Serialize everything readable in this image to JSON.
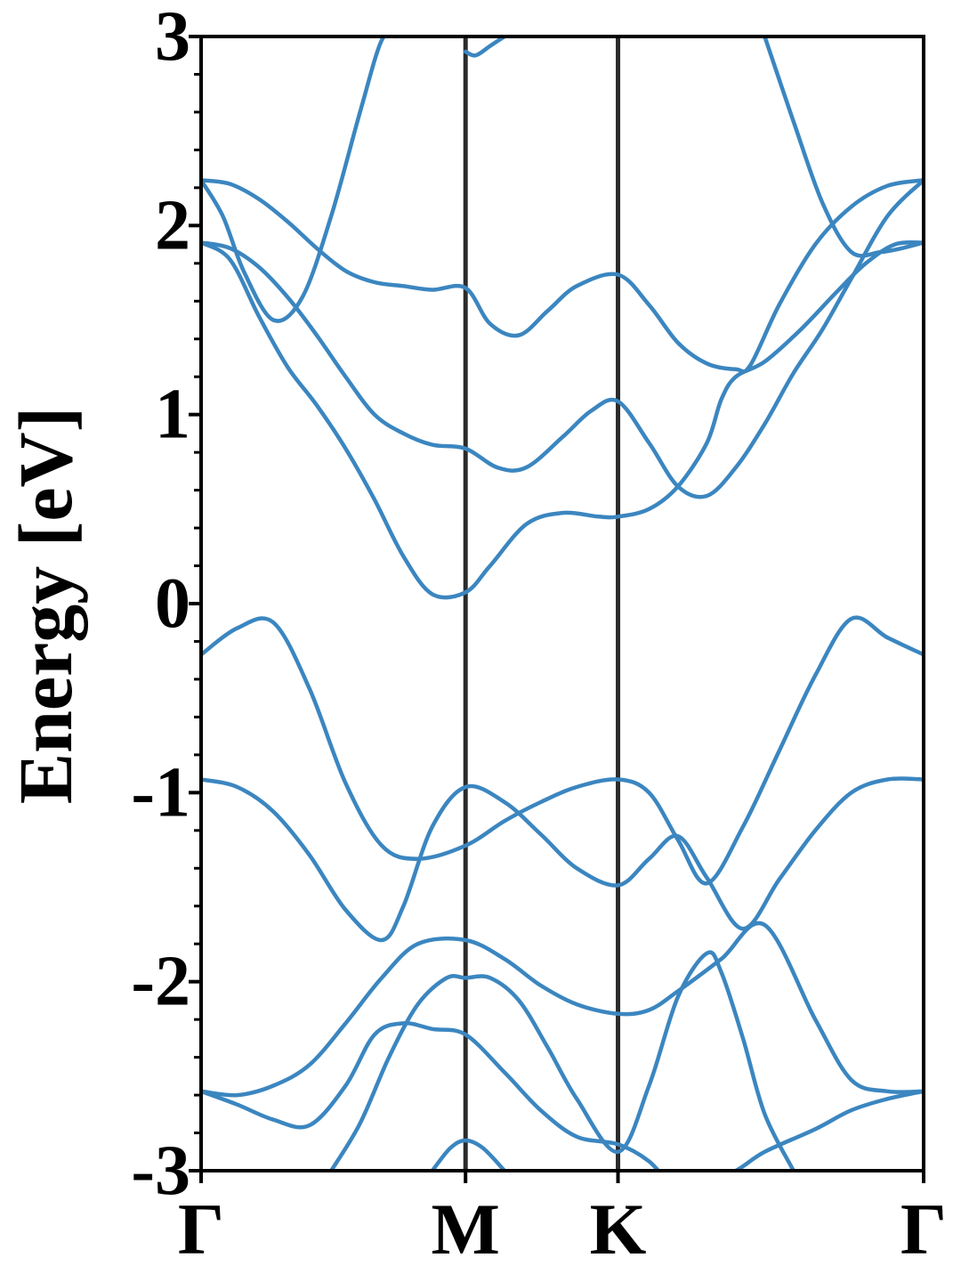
{
  "chart_data": {
    "type": "line",
    "title": "",
    "xlabel": "",
    "ylabel": "Energy [eV]",
    "ylim": [
      -3,
      3
    ],
    "xlim": [
      0,
      1
    ],
    "yticks": [
      {
        "value": 3,
        "label": "3"
      },
      {
        "value": 2,
        "label": "2"
      },
      {
        "value": 1,
        "label": "1"
      },
      {
        "value": 0,
        "label": "0"
      },
      {
        "value": -1,
        "label": "-1"
      },
      {
        "value": -2,
        "label": "-2"
      },
      {
        "value": -3,
        "label": "-3"
      }
    ],
    "yminor_step": 0.2,
    "high_symmetry_points": [
      {
        "label": "Γ",
        "x": 0.0
      },
      {
        "label": "M",
        "x": 0.366
      },
      {
        "label": "K",
        "x": 0.577
      },
      {
        "label": "Γ",
        "x": 1.0
      }
    ],
    "line_color": "#3b86c0",
    "vline_color": "#2b2b2b",
    "series": [
      {
        "x": [
          0.0,
          0.05,
          0.1,
          0.15,
          0.2,
          0.25,
          0.3,
          0.366,
          0.42,
          0.47,
          0.52,
          0.577,
          0.62,
          0.66,
          0.7,
          0.75,
          0.8,
          0.85,
          0.9,
          0.95,
          1.0
        ],
        "y": [
          -0.27,
          -0.13,
          -0.1,
          -0.45,
          -0.95,
          -1.28,
          -1.35,
          -1.28,
          -1.15,
          -1.05,
          -0.97,
          -0.93,
          -1.0,
          -1.25,
          -1.48,
          -1.18,
          -0.78,
          -0.38,
          -0.08,
          -0.18,
          -0.27
        ]
      },
      {
        "x": [
          0.0,
          0.05,
          0.1,
          0.15,
          0.2,
          0.25,
          0.28,
          0.32,
          0.366,
          0.42,
          0.47,
          0.52,
          0.577,
          0.62,
          0.66,
          0.7,
          0.75,
          0.8,
          0.85,
          0.9,
          0.95,
          1.0
        ],
        "y": [
          -0.93,
          -0.97,
          -1.1,
          -1.33,
          -1.62,
          -1.78,
          -1.6,
          -1.18,
          -0.97,
          -1.05,
          -1.22,
          -1.4,
          -1.49,
          -1.35,
          -1.23,
          -1.45,
          -1.72,
          -1.46,
          -1.2,
          -1.0,
          -0.93,
          -0.93
        ]
      },
      {
        "x": [
          0.0,
          0.05,
          0.1,
          0.15,
          0.2,
          0.25,
          0.3,
          0.366,
          0.42,
          0.47,
          0.52,
          0.577,
          0.62,
          0.66,
          0.72,
          0.78,
          0.85,
          0.9,
          0.95,
          1.0
        ],
        "y": [
          -2.58,
          -2.6,
          -2.55,
          -2.44,
          -2.22,
          -1.98,
          -1.8,
          -1.78,
          -1.88,
          -2.02,
          -2.12,
          -2.17,
          -2.15,
          -2.05,
          -1.88,
          -1.7,
          -2.2,
          -2.52,
          -2.58,
          -2.58
        ]
      },
      {
        "x": [
          0.0,
          0.05,
          0.1,
          0.15,
          0.2,
          0.24,
          0.28,
          0.32,
          0.366,
          0.42,
          0.47,
          0.52,
          0.577,
          0.62,
          0.66,
          0.7,
          0.74,
          0.78,
          0.85,
          0.9,
          0.95,
          1.0
        ],
        "y": [
          -2.58,
          -2.65,
          -2.73,
          -2.76,
          -2.55,
          -2.28,
          -2.22,
          -2.25,
          -2.28,
          -2.48,
          -2.68,
          -2.82,
          -2.86,
          -2.95,
          -3.1,
          -3.05,
          -3.0,
          -2.9,
          -2.78,
          -2.68,
          -2.62,
          -2.58
        ]
      },
      {
        "x": [
          0.18,
          0.22,
          0.26,
          0.3,
          0.34,
          0.366,
          0.4,
          0.44,
          0.48,
          0.52,
          0.577,
          0.62,
          0.66,
          0.7,
          0.72,
          0.75,
          0.78,
          0.82
        ],
        "y": [
          -3.0,
          -2.75,
          -2.4,
          -2.12,
          -1.98,
          -1.98,
          -1.98,
          -2.1,
          -2.35,
          -2.62,
          -2.9,
          -2.55,
          -2.08,
          -1.85,
          -1.95,
          -2.3,
          -2.7,
          -3.0
        ]
      },
      {
        "x": [
          0.32,
          0.345,
          0.366,
          0.39,
          0.42
        ],
        "y": [
          -3.0,
          -2.88,
          -2.84,
          -2.88,
          -3.0
        ]
      },
      {
        "x": [
          0.0,
          0.04,
          0.08,
          0.12,
          0.16,
          0.2,
          0.24,
          0.28,
          0.32,
          0.366,
          0.4,
          0.45,
          0.5,
          0.55,
          0.577,
          0.62,
          0.66,
          0.7,
          0.72,
          0.74,
          0.78,
          0.83,
          0.88,
          0.92,
          0.96,
          1.0
        ],
        "y": [
          1.91,
          1.82,
          1.52,
          1.25,
          1.05,
          0.82,
          0.55,
          0.25,
          0.05,
          0.06,
          0.2,
          0.42,
          0.48,
          0.46,
          0.46,
          0.5,
          0.62,
          0.85,
          1.08,
          1.2,
          1.28,
          1.45,
          1.65,
          1.8,
          1.9,
          1.91
        ]
      },
      {
        "x": [
          0.0,
          0.04,
          0.08,
          0.12,
          0.16,
          0.2,
          0.24,
          0.28,
          0.32,
          0.366,
          0.41,
          0.45,
          0.5,
          0.54,
          0.577,
          0.62,
          0.66,
          0.7,
          0.74,
          0.78,
          0.82,
          0.86,
          0.9,
          0.95,
          1.0
        ],
        "y": [
          1.91,
          1.88,
          1.78,
          1.62,
          1.42,
          1.2,
          1.0,
          0.9,
          0.84,
          0.82,
          0.72,
          0.72,
          0.88,
          1.02,
          1.07,
          0.85,
          0.62,
          0.57,
          0.72,
          0.95,
          1.22,
          1.45,
          1.72,
          2.05,
          2.24
        ]
      },
      {
        "x": [
          0.0,
          0.04,
          0.08,
          0.12,
          0.16,
          0.2,
          0.24,
          0.28,
          0.32,
          0.366,
          0.4,
          0.44,
          0.48,
          0.52,
          0.577,
          0.62,
          0.66,
          0.7,
          0.74,
          0.76,
          0.8,
          0.85,
          0.9,
          0.95,
          1.0
        ],
        "y": [
          2.24,
          2.22,
          2.14,
          2.02,
          1.88,
          1.76,
          1.7,
          1.68,
          1.66,
          1.67,
          1.48,
          1.42,
          1.55,
          1.68,
          1.74,
          1.58,
          1.38,
          1.27,
          1.24,
          1.26,
          1.58,
          1.9,
          2.1,
          2.21,
          2.24
        ]
      },
      {
        "x": [
          0.0,
          0.03,
          0.06,
          0.1,
          0.14,
          0.18,
          0.22,
          0.25,
          0.27
        ],
        "y": [
          2.24,
          2.05,
          1.75,
          1.5,
          1.62,
          2.05,
          2.6,
          2.98,
          3.0
        ]
      },
      {
        "x": [
          0.366,
          0.38,
          0.4,
          0.42
        ],
        "y": [
          2.92,
          2.9,
          2.95,
          3.0
        ]
      },
      {
        "x": [
          0.78,
          0.82,
          0.86,
          0.9,
          0.94,
          0.97,
          1.0
        ],
        "y": [
          3.0,
          2.55,
          2.12,
          1.86,
          1.86,
          1.88,
          1.91
        ]
      }
    ]
  }
}
